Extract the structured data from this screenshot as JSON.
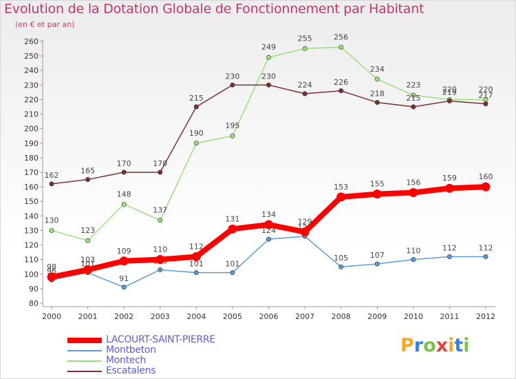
{
  "header": {
    "title": "Evolution de la Dotation Globale de Fonctionnement par Habitant",
    "subtitle": "(en € et par an)"
  },
  "logo": {
    "text": "Proxiti",
    "colors": [
      "#f5a623",
      "#3b7fd6",
      "#7cc242",
      "#e23f3f",
      "#f5a623",
      "#3b7fd6",
      "#7cc242"
    ]
  },
  "chart_data": {
    "type": "line",
    "title": "Evolution de la Dotation Globale de Fonctionnement par Habitant",
    "subtitle": "(en € et par an)",
    "x": [
      "2000",
      "2001",
      "2002",
      "2003",
      "2004",
      "2005",
      "2006",
      "2007",
      "2008",
      "2009",
      "2010",
      "2011",
      "2012"
    ],
    "ylim": [
      80,
      260
    ],
    "yticks": [
      80,
      90,
      100,
      110,
      120,
      130,
      140,
      150,
      160,
      170,
      180,
      190,
      200,
      210,
      220,
      230,
      240,
      250,
      260
    ],
    "grid": false,
    "legend_position": "bottom-left",
    "series": [
      {
        "name": "LACOURT-SAINT-PIERRE",
        "color": "#ff0000",
        "values": [
          98,
          103,
          109,
          110,
          112,
          131,
          134,
          129,
          153,
          155,
          156,
          159,
          160
        ]
      },
      {
        "name": "Montbeton",
        "color": "#5a9bd5",
        "values": [
          96,
          101,
          91,
          103,
          101,
          101,
          124,
          126,
          105,
          107,
          110,
          112,
          112
        ]
      },
      {
        "name": "Montech",
        "color": "#99e07a",
        "values": [
          130,
          123,
          148,
          137,
          190,
          195,
          249,
          255,
          256,
          234,
          223,
          220,
          220
        ]
      },
      {
        "name": "Escatalens",
        "color": "#7a3030",
        "values": [
          162,
          165,
          170,
          170,
          215,
          230,
          230,
          224,
          226,
          218,
          215,
          219,
          217
        ]
      }
    ]
  }
}
